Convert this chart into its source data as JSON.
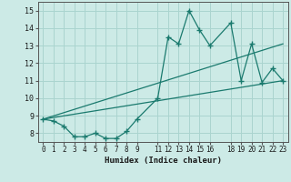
{
  "title": "",
  "xlabel": "Humidex (Indice chaleur)",
  "ylabel": "",
  "bg_color": "#cceae6",
  "grid_color": "#aad4cf",
  "line_color": "#1a7a6e",
  "xlim": [
    -0.5,
    23.5
  ],
  "ylim": [
    7.5,
    15.5
  ],
  "xticks": [
    0,
    1,
    2,
    3,
    4,
    5,
    6,
    7,
    8,
    9,
    11,
    12,
    13,
    14,
    15,
    16,
    18,
    19,
    20,
    21,
    22,
    23
  ],
  "yticks": [
    8,
    9,
    10,
    11,
    12,
    13,
    14,
    15
  ],
  "series1_x": [
    0,
    1,
    2,
    3,
    4,
    5,
    6,
    7,
    8,
    9,
    11,
    12,
    13,
    14,
    15,
    16,
    18,
    19,
    20,
    21,
    22,
    23
  ],
  "series1_y": [
    8.8,
    8.7,
    8.4,
    7.8,
    7.8,
    8.0,
    7.7,
    7.7,
    8.1,
    8.8,
    10.0,
    13.5,
    13.1,
    15.0,
    13.9,
    13.0,
    14.3,
    11.0,
    13.1,
    10.9,
    11.7,
    11.0
  ],
  "series2_x": [
    0,
    23
  ],
  "series2_y": [
    8.8,
    13.1
  ],
  "series3_x": [
    0,
    23
  ],
  "series3_y": [
    8.8,
    11.0
  ],
  "figsize": [
    3.2,
    2.0
  ],
  "dpi": 100
}
